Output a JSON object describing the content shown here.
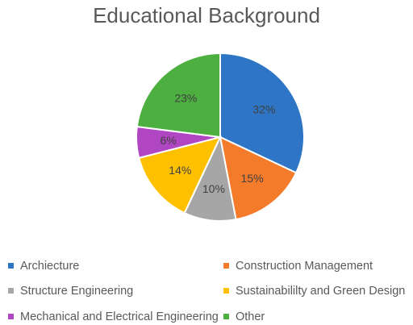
{
  "chart_data": {
    "type": "pie",
    "title": "Educational Background",
    "slices": [
      {
        "label": "Archiecture",
        "value": 32,
        "data_label": "32%",
        "color": "#2E75C6"
      },
      {
        "label": "Construction Management",
        "value": 15,
        "data_label": "15%",
        "color": "#F47B2A"
      },
      {
        "label": "Structure Engineering",
        "value": 10,
        "data_label": "10%",
        "color": "#A6A6A6"
      },
      {
        "label": "Sustainabililty and Green Design",
        "value": 14,
        "data_label": "14%",
        "color": "#FFC000"
      },
      {
        "label": "Mechanical and Electrical Engineering",
        "value": 6,
        "data_label": "6%",
        "color": "#B146C2"
      },
      {
        "label": "Other",
        "value": 23,
        "data_label": "23%",
        "color": "#4CAF3F"
      }
    ],
    "legend_position": "bottom"
  }
}
